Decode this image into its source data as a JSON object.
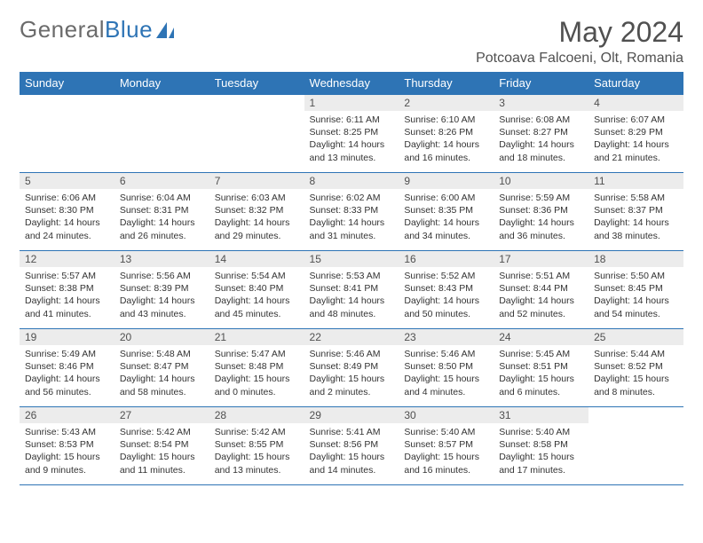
{
  "brand": {
    "general": "General",
    "blue": "Blue"
  },
  "title": "May 2024",
  "location": "Potcoava Falcoeni, Olt, Romania",
  "colors": {
    "header_bg": "#2e74b5",
    "header_fg": "#ffffff",
    "daynum_bg": "#ececec",
    "rule": "#2e74b5",
    "title_fg": "#505050"
  },
  "dayNames": [
    "Sunday",
    "Monday",
    "Tuesday",
    "Wednesday",
    "Thursday",
    "Friday",
    "Saturday"
  ],
  "weeks": [
    [
      null,
      null,
      null,
      {
        "n": "1",
        "sr": "6:11 AM",
        "ss": "8:25 PM",
        "dl": "14 hours and 13 minutes."
      },
      {
        "n": "2",
        "sr": "6:10 AM",
        "ss": "8:26 PM",
        "dl": "14 hours and 16 minutes."
      },
      {
        "n": "3",
        "sr": "6:08 AM",
        "ss": "8:27 PM",
        "dl": "14 hours and 18 minutes."
      },
      {
        "n": "4",
        "sr": "6:07 AM",
        "ss": "8:29 PM",
        "dl": "14 hours and 21 minutes."
      }
    ],
    [
      {
        "n": "5",
        "sr": "6:06 AM",
        "ss": "8:30 PM",
        "dl": "14 hours and 24 minutes."
      },
      {
        "n": "6",
        "sr": "6:04 AM",
        "ss": "8:31 PM",
        "dl": "14 hours and 26 minutes."
      },
      {
        "n": "7",
        "sr": "6:03 AM",
        "ss": "8:32 PM",
        "dl": "14 hours and 29 minutes."
      },
      {
        "n": "8",
        "sr": "6:02 AM",
        "ss": "8:33 PM",
        "dl": "14 hours and 31 minutes."
      },
      {
        "n": "9",
        "sr": "6:00 AM",
        "ss": "8:35 PM",
        "dl": "14 hours and 34 minutes."
      },
      {
        "n": "10",
        "sr": "5:59 AM",
        "ss": "8:36 PM",
        "dl": "14 hours and 36 minutes."
      },
      {
        "n": "11",
        "sr": "5:58 AM",
        "ss": "8:37 PM",
        "dl": "14 hours and 38 minutes."
      }
    ],
    [
      {
        "n": "12",
        "sr": "5:57 AM",
        "ss": "8:38 PM",
        "dl": "14 hours and 41 minutes."
      },
      {
        "n": "13",
        "sr": "5:56 AM",
        "ss": "8:39 PM",
        "dl": "14 hours and 43 minutes."
      },
      {
        "n": "14",
        "sr": "5:54 AM",
        "ss": "8:40 PM",
        "dl": "14 hours and 45 minutes."
      },
      {
        "n": "15",
        "sr": "5:53 AM",
        "ss": "8:41 PM",
        "dl": "14 hours and 48 minutes."
      },
      {
        "n": "16",
        "sr": "5:52 AM",
        "ss": "8:43 PM",
        "dl": "14 hours and 50 minutes."
      },
      {
        "n": "17",
        "sr": "5:51 AM",
        "ss": "8:44 PM",
        "dl": "14 hours and 52 minutes."
      },
      {
        "n": "18",
        "sr": "5:50 AM",
        "ss": "8:45 PM",
        "dl": "14 hours and 54 minutes."
      }
    ],
    [
      {
        "n": "19",
        "sr": "5:49 AM",
        "ss": "8:46 PM",
        "dl": "14 hours and 56 minutes."
      },
      {
        "n": "20",
        "sr": "5:48 AM",
        "ss": "8:47 PM",
        "dl": "14 hours and 58 minutes."
      },
      {
        "n": "21",
        "sr": "5:47 AM",
        "ss": "8:48 PM",
        "dl": "15 hours and 0 minutes."
      },
      {
        "n": "22",
        "sr": "5:46 AM",
        "ss": "8:49 PM",
        "dl": "15 hours and 2 minutes."
      },
      {
        "n": "23",
        "sr": "5:46 AM",
        "ss": "8:50 PM",
        "dl": "15 hours and 4 minutes."
      },
      {
        "n": "24",
        "sr": "5:45 AM",
        "ss": "8:51 PM",
        "dl": "15 hours and 6 minutes."
      },
      {
        "n": "25",
        "sr": "5:44 AM",
        "ss": "8:52 PM",
        "dl": "15 hours and 8 minutes."
      }
    ],
    [
      {
        "n": "26",
        "sr": "5:43 AM",
        "ss": "8:53 PM",
        "dl": "15 hours and 9 minutes."
      },
      {
        "n": "27",
        "sr": "5:42 AM",
        "ss": "8:54 PM",
        "dl": "15 hours and 11 minutes."
      },
      {
        "n": "28",
        "sr": "5:42 AM",
        "ss": "8:55 PM",
        "dl": "15 hours and 13 minutes."
      },
      {
        "n": "29",
        "sr": "5:41 AM",
        "ss": "8:56 PM",
        "dl": "15 hours and 14 minutes."
      },
      {
        "n": "30",
        "sr": "5:40 AM",
        "ss": "8:57 PM",
        "dl": "15 hours and 16 minutes."
      },
      {
        "n": "31",
        "sr": "5:40 AM",
        "ss": "8:58 PM",
        "dl": "15 hours and 17 minutes."
      },
      null
    ]
  ],
  "labels": {
    "sunrise": "Sunrise:",
    "sunset": "Sunset:",
    "daylight": "Daylight:"
  }
}
